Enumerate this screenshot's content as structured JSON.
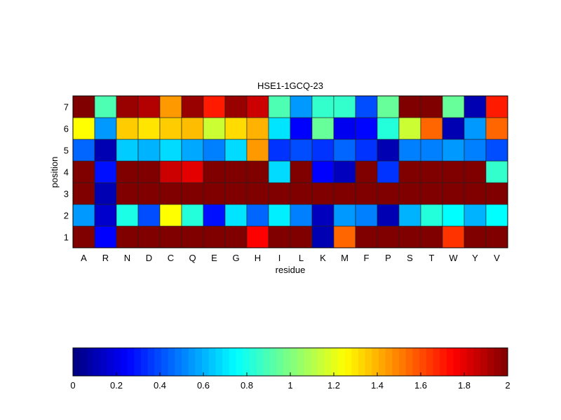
{
  "chart_data": {
    "type": "heatmap",
    "title": "HSE1-1GCQ-23",
    "xlabel": "residue",
    "ylabel": "position",
    "x_categories": [
      "A",
      "R",
      "N",
      "D",
      "C",
      "Q",
      "E",
      "G",
      "H",
      "I",
      "L",
      "K",
      "M",
      "F",
      "P",
      "S",
      "T",
      "W",
      "Y",
      "V"
    ],
    "y_categories": [
      "1",
      "2",
      "3",
      "4",
      "5",
      "6",
      "7"
    ],
    "colormap": "jet",
    "clim": [
      0,
      2
    ],
    "colorbar": {
      "placement": "bottom",
      "ticks": [
        "0",
        "0.2",
        "0.4",
        "0.6",
        "0.8",
        "1",
        "1.2",
        "1.4",
        "1.6",
        "1.8",
        "2"
      ]
    },
    "rows": [
      {
        "position": "1",
        "values": [
          2.0,
          0.25,
          2.0,
          2.0,
          2.0,
          2.0,
          2.0,
          2.0,
          1.75,
          2.0,
          2.0,
          0.1,
          1.55,
          2.0,
          2.0,
          2.0,
          2.0,
          1.65,
          2.0,
          2.0
        ]
      },
      {
        "position": "2",
        "values": [
          0.55,
          0.15,
          0.8,
          0.4,
          1.25,
          0.82,
          0.28,
          0.7,
          0.45,
          0.72,
          0.5,
          0.12,
          0.55,
          0.5,
          0.1,
          0.6,
          0.82,
          0.75,
          0.6,
          0.75
        ]
      },
      {
        "position": "3",
        "values": [
          2.0,
          0.1,
          2.0,
          2.0,
          2.0,
          2.0,
          2.0,
          2.0,
          2.0,
          2.0,
          2.0,
          2.0,
          2.0,
          2.0,
          2.0,
          2.0,
          2.0,
          2.0,
          2.0,
          2.0
        ]
      },
      {
        "position": "4",
        "values": [
          2.0,
          0.28,
          2.0,
          2.0,
          1.85,
          1.8,
          2.0,
          2.0,
          2.0,
          0.68,
          2.0,
          0.25,
          0.12,
          2.0,
          0.35,
          2.0,
          2.0,
          2.0,
          2.0,
          0.85
        ]
      },
      {
        "position": "5",
        "values": [
          0.45,
          0.1,
          0.65,
          0.6,
          0.68,
          0.58,
          0.5,
          0.68,
          1.45,
          0.35,
          0.4,
          0.35,
          0.45,
          0.35,
          0.1,
          0.5,
          0.5,
          0.55,
          0.5,
          0.4
        ]
      },
      {
        "position": "6",
        "values": [
          1.25,
          0.55,
          1.35,
          1.3,
          1.35,
          1.38,
          1.15,
          1.32,
          1.4,
          0.7,
          0.25,
          0.95,
          0.22,
          0.26,
          0.82,
          1.15,
          1.55,
          0.1,
          0.55,
          1.55
        ]
      },
      {
        "position": "7",
        "values": [
          2.0,
          0.9,
          1.95,
          1.9,
          1.45,
          1.95,
          1.7,
          1.95,
          1.85,
          0.9,
          0.55,
          0.85,
          0.85,
          0.4,
          0.95,
          2.0,
          2.0,
          0.95,
          0.1,
          1.7
        ]
      }
    ]
  }
}
